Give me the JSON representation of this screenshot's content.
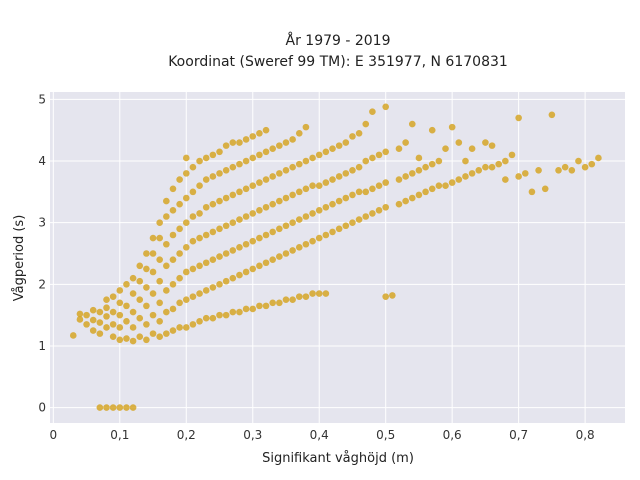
{
  "chart_data": {
    "type": "scatter",
    "title_line1": "År 1979 - 2019",
    "title_line2": "Koordinat (Sweref 99 TM): E 351977, N 6170831",
    "xlabel": "Signifikant våghöjd (m)",
    "ylabel": "Vågperiod (s)",
    "xlim": [
      -0.005,
      0.86
    ],
    "ylim": [
      -0.25,
      5.12
    ],
    "xticks": [
      0,
      0.1,
      0.2,
      0.3,
      0.4,
      0.5,
      0.6,
      0.7,
      0.8
    ],
    "xtick_labels": [
      "0",
      "0,1",
      "0,2",
      "0,3",
      "0,4",
      "0,5",
      "0,6",
      "0,7",
      "0,8"
    ],
    "yticks": [
      0,
      1,
      2,
      3,
      4,
      5
    ],
    "ytick_labels": [
      "0",
      "1",
      "2",
      "3",
      "4",
      "5"
    ],
    "grid": true,
    "legend": "none",
    "plot_background": "#e5e5ee",
    "marker_color": "#d4a21f",
    "series": [
      {
        "points": [
          [
            0.03,
            1.17
          ],
          [
            0.04,
            1.43
          ],
          [
            0.04,
            1.52
          ],
          [
            0.05,
            1.35
          ],
          [
            0.05,
            1.5
          ],
          [
            0.06,
            1.25
          ],
          [
            0.06,
            1.42
          ],
          [
            0.06,
            1.58
          ],
          [
            0.07,
            1.2
          ],
          [
            0.07,
            1.38
          ],
          [
            0.07,
            1.55
          ],
          [
            0.08,
            1.3
          ],
          [
            0.08,
            1.48
          ],
          [
            0.08,
            1.62
          ],
          [
            0.08,
            1.75
          ],
          [
            0.09,
            1.15
          ],
          [
            0.09,
            1.35
          ],
          [
            0.09,
            1.55
          ],
          [
            0.09,
            1.8
          ],
          [
            0.1,
            1.1
          ],
          [
            0.1,
            1.3
          ],
          [
            0.1,
            1.5
          ],
          [
            0.1,
            1.7
          ],
          [
            0.1,
            1.9
          ],
          [
            0.11,
            1.12
          ],
          [
            0.11,
            1.4
          ],
          [
            0.11,
            1.65
          ],
          [
            0.11,
            2.0
          ],
          [
            0.12,
            1.08
          ],
          [
            0.12,
            1.3
          ],
          [
            0.12,
            1.55
          ],
          [
            0.12,
            1.85
          ],
          [
            0.12,
            2.1
          ],
          [
            0.13,
            1.15
          ],
          [
            0.13,
            1.45
          ],
          [
            0.13,
            1.75
          ],
          [
            0.13,
            2.05
          ],
          [
            0.13,
            2.3
          ],
          [
            0.14,
            1.1
          ],
          [
            0.14,
            1.35
          ],
          [
            0.14,
            1.65
          ],
          [
            0.14,
            1.95
          ],
          [
            0.14,
            2.25
          ],
          [
            0.14,
            2.5
          ],
          [
            0.15,
            1.2
          ],
          [
            0.15,
            1.5
          ],
          [
            0.15,
            1.85
          ],
          [
            0.15,
            2.2
          ],
          [
            0.15,
            2.5
          ],
          [
            0.15,
            2.75
          ],
          [
            0.16,
            1.15
          ],
          [
            0.16,
            1.4
          ],
          [
            0.16,
            1.7
          ],
          [
            0.16,
            2.05
          ],
          [
            0.16,
            2.4
          ],
          [
            0.16,
            2.75
          ],
          [
            0.16,
            3.0
          ],
          [
            0.17,
            1.2
          ],
          [
            0.17,
            1.55
          ],
          [
            0.17,
            1.9
          ],
          [
            0.17,
            2.3
          ],
          [
            0.17,
            2.65
          ],
          [
            0.17,
            3.1
          ],
          [
            0.17,
            3.35
          ],
          [
            0.18,
            1.25
          ],
          [
            0.18,
            1.6
          ],
          [
            0.18,
            2.0
          ],
          [
            0.18,
            2.4
          ],
          [
            0.18,
            2.8
          ],
          [
            0.18,
            3.2
          ],
          [
            0.18,
            3.55
          ],
          [
            0.19,
            1.3
          ],
          [
            0.19,
            1.7
          ],
          [
            0.19,
            2.1
          ],
          [
            0.19,
            2.5
          ],
          [
            0.19,
            2.9
          ],
          [
            0.19,
            3.3
          ],
          [
            0.19,
            3.7
          ],
          [
            0.2,
            1.3
          ],
          [
            0.2,
            1.75
          ],
          [
            0.2,
            2.2
          ],
          [
            0.2,
            2.6
          ],
          [
            0.2,
            3.0
          ],
          [
            0.2,
            3.4
          ],
          [
            0.2,
            3.8
          ],
          [
            0.2,
            4.05
          ],
          [
            0.21,
            1.35
          ],
          [
            0.21,
            1.8
          ],
          [
            0.21,
            2.25
          ],
          [
            0.21,
            2.7
          ],
          [
            0.21,
            3.1
          ],
          [
            0.21,
            3.5
          ],
          [
            0.21,
            3.9
          ],
          [
            0.22,
            1.4
          ],
          [
            0.22,
            1.85
          ],
          [
            0.22,
            2.3
          ],
          [
            0.22,
            2.75
          ],
          [
            0.22,
            3.15
          ],
          [
            0.22,
            3.6
          ],
          [
            0.22,
            4.0
          ],
          [
            0.23,
            1.45
          ],
          [
            0.23,
            1.9
          ],
          [
            0.23,
            2.35
          ],
          [
            0.23,
            2.8
          ],
          [
            0.23,
            3.25
          ],
          [
            0.23,
            3.7
          ],
          [
            0.23,
            4.05
          ],
          [
            0.24,
            1.45
          ],
          [
            0.24,
            1.95
          ],
          [
            0.24,
            2.4
          ],
          [
            0.24,
            2.85
          ],
          [
            0.24,
            3.3
          ],
          [
            0.24,
            3.75
          ],
          [
            0.24,
            4.1
          ],
          [
            0.25,
            1.5
          ],
          [
            0.25,
            2.0
          ],
          [
            0.25,
            2.45
          ],
          [
            0.25,
            2.9
          ],
          [
            0.25,
            3.35
          ],
          [
            0.25,
            3.8
          ],
          [
            0.25,
            4.15
          ],
          [
            0.26,
            1.5
          ],
          [
            0.26,
            2.05
          ],
          [
            0.26,
            2.5
          ],
          [
            0.26,
            2.95
          ],
          [
            0.26,
            3.4
          ],
          [
            0.26,
            3.85
          ],
          [
            0.26,
            4.25
          ],
          [
            0.27,
            1.55
          ],
          [
            0.27,
            2.1
          ],
          [
            0.27,
            2.55
          ],
          [
            0.27,
            3.0
          ],
          [
            0.27,
            3.45
          ],
          [
            0.27,
            3.9
          ],
          [
            0.27,
            4.3
          ],
          [
            0.28,
            1.55
          ],
          [
            0.28,
            2.15
          ],
          [
            0.28,
            2.6
          ],
          [
            0.28,
            3.05
          ],
          [
            0.28,
            3.5
          ],
          [
            0.28,
            3.95
          ],
          [
            0.28,
            4.3
          ],
          [
            0.29,
            1.6
          ],
          [
            0.29,
            2.2
          ],
          [
            0.29,
            2.65
          ],
          [
            0.29,
            3.1
          ],
          [
            0.29,
            3.55
          ],
          [
            0.29,
            4.0
          ],
          [
            0.29,
            4.35
          ],
          [
            0.3,
            1.6
          ],
          [
            0.3,
            2.25
          ],
          [
            0.3,
            2.7
          ],
          [
            0.3,
            3.15
          ],
          [
            0.3,
            3.6
          ],
          [
            0.3,
            4.05
          ],
          [
            0.3,
            4.4
          ],
          [
            0.31,
            1.65
          ],
          [
            0.31,
            2.3
          ],
          [
            0.31,
            2.75
          ],
          [
            0.31,
            3.2
          ],
          [
            0.31,
            3.65
          ],
          [
            0.31,
            4.1
          ],
          [
            0.31,
            4.45
          ],
          [
            0.32,
            1.65
          ],
          [
            0.32,
            2.35
          ],
          [
            0.32,
            2.8
          ],
          [
            0.32,
            3.25
          ],
          [
            0.32,
            3.7
          ],
          [
            0.32,
            4.15
          ],
          [
            0.32,
            4.5
          ],
          [
            0.33,
            1.7
          ],
          [
            0.33,
            2.4
          ],
          [
            0.33,
            2.85
          ],
          [
            0.33,
            3.3
          ],
          [
            0.33,
            3.75
          ],
          [
            0.33,
            4.2
          ],
          [
            0.34,
            1.7
          ],
          [
            0.34,
            2.45
          ],
          [
            0.34,
            2.9
          ],
          [
            0.34,
            3.35
          ],
          [
            0.34,
            3.8
          ],
          [
            0.34,
            4.25
          ],
          [
            0.35,
            1.75
          ],
          [
            0.35,
            2.5
          ],
          [
            0.35,
            2.95
          ],
          [
            0.35,
            3.4
          ],
          [
            0.35,
            3.85
          ],
          [
            0.35,
            4.3
          ],
          [
            0.36,
            1.75
          ],
          [
            0.36,
            2.55
          ],
          [
            0.36,
            3.0
          ],
          [
            0.36,
            3.45
          ],
          [
            0.36,
            3.9
          ],
          [
            0.36,
            4.35
          ],
          [
            0.37,
            1.8
          ],
          [
            0.37,
            2.6
          ],
          [
            0.37,
            3.05
          ],
          [
            0.37,
            3.5
          ],
          [
            0.37,
            3.95
          ],
          [
            0.37,
            4.45
          ],
          [
            0.38,
            1.8
          ],
          [
            0.38,
            2.65
          ],
          [
            0.38,
            3.1
          ],
          [
            0.38,
            3.55
          ],
          [
            0.38,
            4.0
          ],
          [
            0.38,
            4.55
          ],
          [
            0.39,
            1.85
          ],
          [
            0.39,
            2.7
          ],
          [
            0.39,
            3.15
          ],
          [
            0.39,
            3.6
          ],
          [
            0.39,
            4.05
          ],
          [
            0.4,
            1.85
          ],
          [
            0.4,
            2.75
          ],
          [
            0.4,
            3.2
          ],
          [
            0.4,
            3.6
          ],
          [
            0.4,
            4.1
          ],
          [
            0.41,
            1.85
          ],
          [
            0.41,
            2.8
          ],
          [
            0.41,
            3.25
          ],
          [
            0.41,
            3.65
          ],
          [
            0.41,
            4.15
          ],
          [
            0.42,
            2.85
          ],
          [
            0.42,
            3.3
          ],
          [
            0.42,
            3.7
          ],
          [
            0.42,
            4.2
          ],
          [
            0.43,
            2.9
          ],
          [
            0.43,
            3.35
          ],
          [
            0.43,
            3.75
          ],
          [
            0.43,
            4.25
          ],
          [
            0.44,
            2.95
          ],
          [
            0.44,
            3.4
          ],
          [
            0.44,
            3.8
          ],
          [
            0.44,
            4.3
          ],
          [
            0.45,
            3.0
          ],
          [
            0.45,
            3.45
          ],
          [
            0.45,
            3.85
          ],
          [
            0.45,
            4.4
          ],
          [
            0.46,
            3.05
          ],
          [
            0.46,
            3.5
          ],
          [
            0.46,
            3.9
          ],
          [
            0.46,
            4.45
          ],
          [
            0.47,
            3.1
          ],
          [
            0.47,
            3.5
          ],
          [
            0.47,
            4.0
          ],
          [
            0.47,
            4.6
          ],
          [
            0.48,
            3.15
          ],
          [
            0.48,
            3.55
          ],
          [
            0.48,
            4.05
          ],
          [
            0.48,
            4.8
          ],
          [
            0.49,
            3.2
          ],
          [
            0.49,
            3.6
          ],
          [
            0.49,
            4.1
          ],
          [
            0.5,
            3.25
          ],
          [
            0.5,
            3.65
          ],
          [
            0.5,
            4.15
          ],
          [
            0.5,
            4.88
          ],
          [
            0.5,
            1.8
          ],
          [
            0.51,
            1.82
          ],
          [
            0.52,
            3.3
          ],
          [
            0.52,
            3.7
          ],
          [
            0.52,
            4.2
          ],
          [
            0.53,
            3.35
          ],
          [
            0.53,
            3.75
          ],
          [
            0.53,
            4.3
          ],
          [
            0.54,
            3.4
          ],
          [
            0.54,
            3.8
          ],
          [
            0.54,
            4.6
          ],
          [
            0.55,
            3.45
          ],
          [
            0.55,
            3.85
          ],
          [
            0.55,
            4.05
          ],
          [
            0.56,
            3.5
          ],
          [
            0.56,
            3.9
          ],
          [
            0.57,
            3.55
          ],
          [
            0.57,
            3.95
          ],
          [
            0.57,
            4.5
          ],
          [
            0.58,
            3.6
          ],
          [
            0.58,
            4.0
          ],
          [
            0.59,
            3.6
          ],
          [
            0.59,
            4.2
          ],
          [
            0.6,
            3.65
          ],
          [
            0.6,
            4.55
          ],
          [
            0.61,
            3.7
          ],
          [
            0.61,
            4.3
          ],
          [
            0.62,
            3.75
          ],
          [
            0.62,
            4.0
          ],
          [
            0.63,
            3.8
          ],
          [
            0.63,
            4.2
          ],
          [
            0.64,
            3.85
          ],
          [
            0.65,
            3.9
          ],
          [
            0.65,
            4.3
          ],
          [
            0.66,
            3.9
          ],
          [
            0.66,
            4.25
          ],
          [
            0.67,
            3.95
          ],
          [
            0.68,
            4.0
          ],
          [
            0.68,
            3.7
          ],
          [
            0.69,
            4.1
          ],
          [
            0.7,
            3.75
          ],
          [
            0.7,
            4.7
          ],
          [
            0.71,
            3.8
          ],
          [
            0.72,
            3.5
          ],
          [
            0.73,
            3.85
          ],
          [
            0.74,
            3.55
          ],
          [
            0.75,
            4.75
          ],
          [
            0.76,
            3.85
          ],
          [
            0.77,
            3.9
          ],
          [
            0.78,
            3.85
          ],
          [
            0.79,
            4.0
          ],
          [
            0.8,
            3.9
          ],
          [
            0.81,
            3.95
          ],
          [
            0.82,
            4.05
          ],
          [
            0.07,
            0.0
          ],
          [
            0.08,
            0.0
          ],
          [
            0.09,
            0.0
          ],
          [
            0.1,
            0.0
          ],
          [
            0.11,
            0.0
          ],
          [
            0.12,
            0.0
          ]
        ]
      }
    ]
  }
}
